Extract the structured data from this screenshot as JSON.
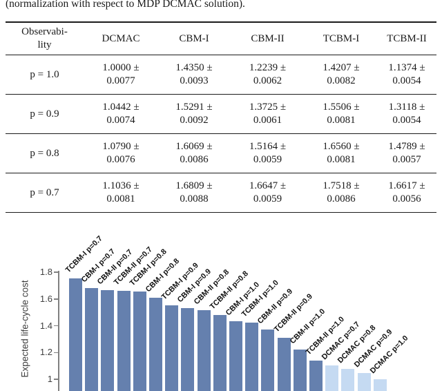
{
  "caption": "(normalization with respect to MDP DCMAC solution).",
  "table": {
    "headers": [
      "Observabi-\nlity",
      "DCMAC",
      "CBM-I",
      "CBM-II",
      "TCBM-I",
      "TCBM-II"
    ],
    "rows": [
      {
        "cells": [
          "p = 1.0",
          "1.0000 ±\n0.0077",
          "1.4350 ±\n0.0093",
          "1.2239 ±\n0.0062",
          "1.4207 ±\n0.0082",
          "1.1374 ±\n0.0054"
        ]
      },
      {
        "cells": [
          "p = 0.9",
          "1.0442 ±\n0.0074",
          "1.5291 ±\n0.0092",
          "1.3725 ±\n0.0061",
          "1.5506 ±\n0.0081",
          "1.3118 ±\n0.0054"
        ]
      },
      {
        "cells": [
          "p = 0.8",
          "1.0790 ±\n0.0076",
          "1.6069 ±\n0.0086",
          "1.5164 ±\n0.0059",
          "1.6560 ±\n0.0081",
          "1.4789 ±\n0.0057"
        ]
      },
      {
        "cells": [
          "p = 0.7",
          "1.1036 ±\n0.0081",
          "1.6809 ±\n0.0088",
          "1.6647 ±\n0.0059",
          "1.7518 ±\n0.0086",
          "1.6617 ±\n0.0056"
        ]
      }
    ]
  },
  "chart_data": {
    "type": "bar",
    "title": "",
    "xlabel": "",
    "ylabel": "Expected life-cycle cost",
    "yticks": [
      1,
      1.2,
      1.4,
      1.6,
      1.8
    ],
    "ylim": [
      1,
      1.8
    ],
    "grid": false,
    "legend": "none",
    "note": "bars sorted descending; chart baseline cropped at image bottom",
    "colors": {
      "bar": "#6580ae",
      "bar_light": "#c5daf2"
    },
    "bars": [
      {
        "label": "TCBM-I p=0.7",
        "value": 1.7518
      },
      {
        "label": "CBM-I p=0.7",
        "value": 1.6809
      },
      {
        "label": "CBM-II p=0.7",
        "value": 1.6647
      },
      {
        "label": "TCBM-II p=0.7",
        "value": 1.6617
      },
      {
        "label": "TCBM-I p=0.8",
        "value": 1.656
      },
      {
        "label": "CBM-I p=0.8",
        "value": 1.6069
      },
      {
        "label": "TCBM-I p=0.9",
        "value": 1.5506
      },
      {
        "label": "CBM-I p=0.9",
        "value": 1.5291
      },
      {
        "label": "CBM-II p=0.8",
        "value": 1.5164
      },
      {
        "label": "TCBM-II p=0.8",
        "value": 1.4789
      },
      {
        "label": "CBM-I p=1.0",
        "value": 1.435
      },
      {
        "label": "TCBM-I p=1.0",
        "value": 1.4207
      },
      {
        "label": "CBM-II p=0.9",
        "value": 1.3725
      },
      {
        "label": "TCBM-II p=0.9",
        "value": 1.3118
      },
      {
        "label": "CBM-II p=1.0",
        "value": 1.2239
      },
      {
        "label": "TCBM-II p=1.0",
        "value": 1.1374
      },
      {
        "label": "DCMAC p=0.7",
        "value": 1.1036,
        "light": true
      },
      {
        "label": "DCMAC p=0.8",
        "value": 1.079,
        "light": true
      },
      {
        "label": "DCMAC p=0.9",
        "value": 1.0442,
        "light": true
      },
      {
        "label": "DCMAC p=1.0",
        "value": 1.0,
        "light": true
      }
    ]
  }
}
